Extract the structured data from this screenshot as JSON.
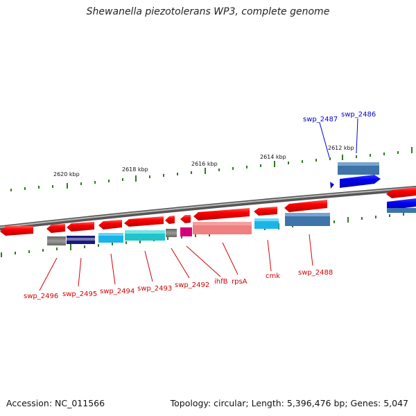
{
  "title": "Shewanella piezotolerans WP3, complete genome",
  "footer": {
    "accession": "Accession: NC_011566",
    "topology": "Topology: circular; Length: 5,396,476 bp; Genes: 5,047"
  },
  "scale_labels": [
    "2620 kbp",
    "2618 kbp",
    "2616 kbp",
    "2614 kbp",
    "2612 kbp"
  ],
  "gene_labels": [
    {
      "text": "swp_2496",
      "strand": "minus"
    },
    {
      "text": "swp_2495",
      "strand": "minus"
    },
    {
      "text": "swp_2494",
      "strand": "minus"
    },
    {
      "text": "swp_2493",
      "strand": "minus"
    },
    {
      "text": "swp_2492",
      "strand": "minus"
    },
    {
      "text": "ihfB",
      "strand": "minus"
    },
    {
      "text": "rpsA",
      "strand": "minus"
    },
    {
      "text": "cmk",
      "strand": "minus"
    },
    {
      "text": "swp_2488",
      "strand": "minus"
    },
    {
      "text": "swp_2487",
      "strand": "plus"
    },
    {
      "text": "swp_2486",
      "strand": "plus"
    }
  ],
  "colors": {
    "minus_strand": "#d40000",
    "plus_strand": "#0000cc",
    "backbone": "#808080",
    "tick": "#2f7a1f"
  }
}
